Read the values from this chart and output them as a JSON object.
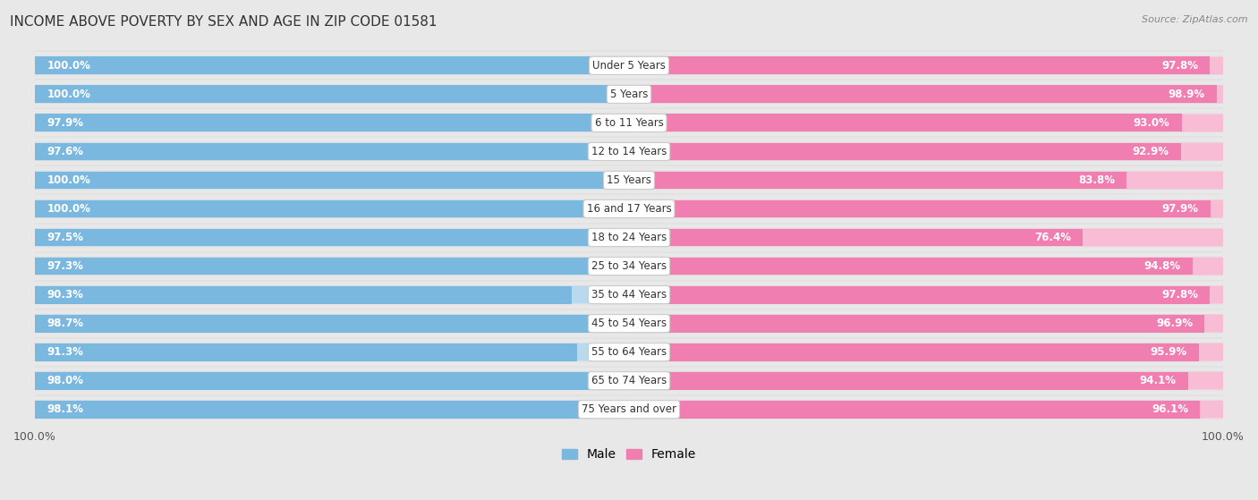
{
  "title": "INCOME ABOVE POVERTY BY SEX AND AGE IN ZIP CODE 01581",
  "source": "Source: ZipAtlas.com",
  "categories": [
    "Under 5 Years",
    "5 Years",
    "6 to 11 Years",
    "12 to 14 Years",
    "15 Years",
    "16 and 17 Years",
    "18 to 24 Years",
    "25 to 34 Years",
    "35 to 44 Years",
    "45 to 54 Years",
    "55 to 64 Years",
    "65 to 74 Years",
    "75 Years and over"
  ],
  "male_values": [
    100.0,
    100.0,
    97.9,
    97.6,
    100.0,
    100.0,
    97.5,
    97.3,
    90.3,
    98.7,
    91.3,
    98.0,
    98.1
  ],
  "female_values": [
    97.8,
    98.9,
    93.0,
    92.9,
    83.8,
    97.9,
    76.4,
    94.8,
    97.8,
    96.9,
    95.9,
    94.1,
    96.1
  ],
  "male_color": "#7ab8e0",
  "female_color": "#f07eb0",
  "male_light_color": "#b8d9ee",
  "female_light_color": "#f8bcd5",
  "row_bg_odd": "#f5f5f5",
  "row_bg_even": "#ebebeb",
  "background_color": "#e8e8e8",
  "title_fontsize": 11,
  "label_fontsize": 8.5,
  "value_fontsize": 8.5,
  "axis_fontsize": 9
}
